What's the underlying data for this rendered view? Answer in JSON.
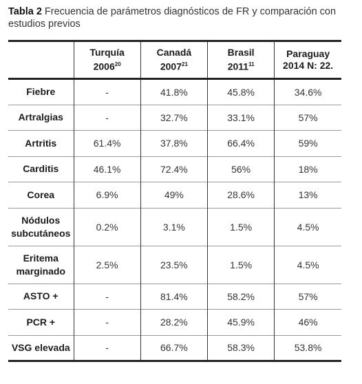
{
  "caption": {
    "label": "Tabla 2",
    "text": "Frecuencia de parámetros diagnósticos de FR y comparación con estudios previos"
  },
  "table": {
    "columns": [
      {
        "name": "Turquía",
        "year": "2006",
        "ref": "20"
      },
      {
        "name": "Canadá",
        "year": "2007",
        "ref": "21"
      },
      {
        "name": "Brasil",
        "year": "2011",
        "ref": "11"
      },
      {
        "name": "Paraguay",
        "year": "2014 N: 22.",
        "ref": null
      }
    ],
    "rows": [
      [
        "Fiebre",
        "-",
        "41.8%",
        "45.8%",
        "34.6%"
      ],
      [
        "Artralgias",
        "-",
        "32.7%",
        "33.1%",
        "57%"
      ],
      [
        "Artritis",
        "61.4%",
        "37.8%",
        "66.4%",
        "59%"
      ],
      [
        "Carditis",
        "46.1%",
        "72.4%",
        "56%",
        "18%"
      ],
      [
        "Corea",
        "6.9%",
        "49%",
        "28.6%",
        "13%"
      ],
      [
        "Nódulos subcutáneos",
        "0.2%",
        "3.1%",
        "1.5%",
        "4.5%"
      ],
      [
        "Eritema marginado",
        "2.5%",
        "23.5%",
        "1.5%",
        "4.5%"
      ],
      [
        "ASTO +",
        "-",
        "81.4%",
        "58.2%",
        "57%"
      ],
      [
        "PCR +",
        "-",
        "28.2%",
        "45.9%",
        "46%"
      ],
      [
        "VSG elevada",
        "-",
        "66.7%",
        "58.3%",
        "53.8%"
      ]
    ]
  }
}
